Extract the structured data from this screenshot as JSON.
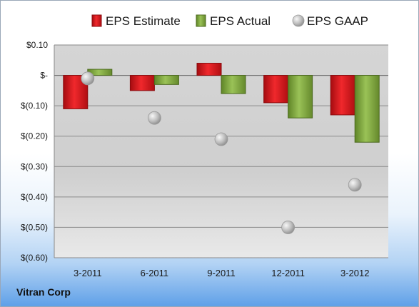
{
  "chart_data": {
    "type": "bar",
    "title": "",
    "xlabel": "",
    "ylabel": "",
    "categories": [
      "3-2011",
      "6-2011",
      "9-2011",
      "12-2011",
      "3-2012"
    ],
    "series": [
      {
        "name": "EPS Estimate",
        "kind": "bar",
        "color": "#d9161c",
        "values": [
          -0.11,
          -0.05,
          0.04,
          -0.09,
          -0.13
        ]
      },
      {
        "name": "EPS Actual",
        "kind": "bar",
        "color": "#7ea63c",
        "values": [
          0.02,
          -0.03,
          -0.06,
          -0.14,
          -0.22
        ]
      },
      {
        "name": "EPS GAAP",
        "kind": "point",
        "color": "#b8b8b8",
        "values": [
          -0.01,
          -0.14,
          -0.21,
          -0.5,
          -0.36
        ]
      }
    ],
    "ylim": [
      -0.6,
      0.1
    ],
    "yticks": [
      0.1,
      0,
      -0.1,
      -0.2,
      -0.3,
      -0.4,
      -0.5,
      -0.6
    ],
    "ytick_labels": [
      "$0.10",
      "$-",
      "$(0.10)",
      "$(0.20)",
      "$(0.30)",
      "$(0.40)",
      "$(0.50)",
      "$(0.60)"
    ],
    "grid": true,
    "legend_position": "top"
  },
  "company_name": "Vitran Corp"
}
